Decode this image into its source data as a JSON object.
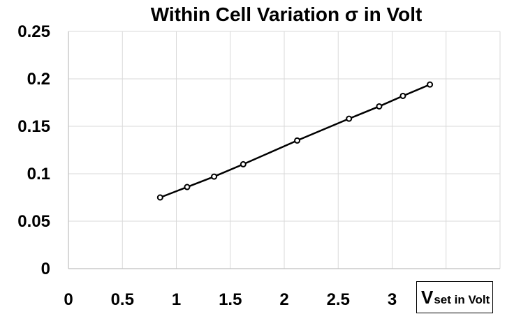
{
  "chart_data": {
    "type": "line",
    "title": "Within Cell Variation σ in Volt",
    "xlabel_main": "V",
    "xlabel_sub": "set in Volt",
    "xlim": [
      0,
      4
    ],
    "ylim": [
      0,
      0.25
    ],
    "x_ticks": [
      "0",
      "0.5",
      "1",
      "1.5",
      "2",
      "2.5",
      "3"
    ],
    "y_ticks": [
      "0.25",
      "0.2",
      "0.15",
      "0.1",
      "0.05",
      "0"
    ],
    "grid": true,
    "series": [
      {
        "x": [
          0.85,
          1.1,
          1.35,
          1.62,
          2.12,
          2.6,
          2.88,
          3.1,
          3.35
        ],
        "y": [
          0.075,
          0.086,
          0.097,
          0.11,
          0.135,
          0.158,
          0.171,
          0.182,
          0.194
        ],
        "color": "#000000"
      }
    ]
  }
}
